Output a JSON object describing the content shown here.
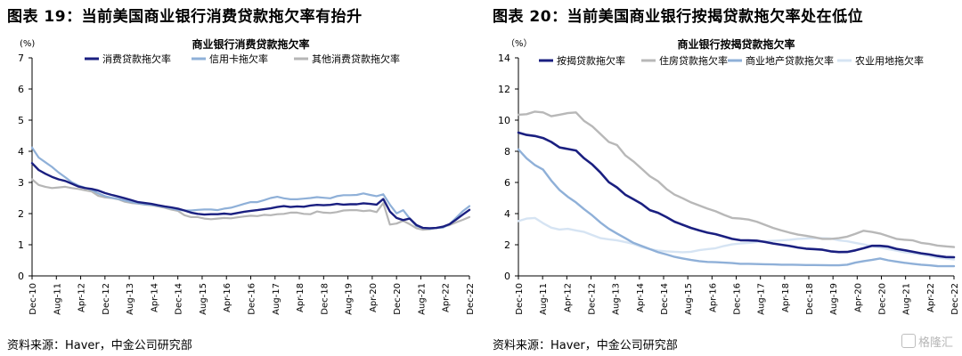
{
  "left": {
    "figure_title": "图表 19：当前美国商业银行消费贷款拖欠率有抬升",
    "source": "资料来源：Haver，中金公司研究部"
  },
  "right": {
    "figure_title": "图表 20：当前美国商业银行按揭贷款拖欠率处在低位",
    "source": "资料来源：Haver，中金公司研究部"
  },
  "watermark": {
    "text": "格隆汇"
  },
  "chart_data": [
    {
      "type": "line",
      "title": "商业银行消费贷款拖欠率",
      "ylabel": "(%)",
      "ylim": [
        0,
        7
      ],
      "yticks": [
        0,
        1,
        2,
        3,
        4,
        5,
        6,
        7
      ],
      "x_tick_labels": [
        "Dec-10",
        "Aug-11",
        "Apr-12",
        "Dec-12",
        "Aug-13",
        "Apr-14",
        "Dec-14",
        "Aug-15",
        "Apr-16",
        "Dec-16",
        "Aug-17",
        "Apr-18",
        "Dec-18",
        "Aug-19",
        "Apr-20",
        "Dec-20",
        "Aug-21",
        "Apr-22",
        "Dec-22"
      ],
      "grid": false,
      "legend_position": "top",
      "series": [
        {
          "name": "消费贷款拖欠率",
          "color": "#1a1f80",
          "width": 2.4,
          "values": [
            3.62,
            3.4,
            3.28,
            3.18,
            3.1,
            3.05,
            2.96,
            2.87,
            2.82,
            2.79,
            2.74,
            2.66,
            2.6,
            2.55,
            2.49,
            2.43,
            2.37,
            2.34,
            2.31,
            2.27,
            2.23,
            2.2,
            2.16,
            2.1,
            2.03,
            1.99,
            1.97,
            1.98,
            1.98,
            2.0,
            1.98,
            2.02,
            2.06,
            2.09,
            2.11,
            2.14,
            2.17,
            2.21,
            2.24,
            2.21,
            2.23,
            2.22,
            2.26,
            2.28,
            2.27,
            2.28,
            2.31,
            2.29,
            2.3,
            2.3,
            2.33,
            2.31,
            2.29,
            2.47,
            2.07,
            1.86,
            1.79,
            1.84,
            1.63,
            1.54,
            1.53,
            1.54,
            1.58,
            1.66,
            1.81,
            1.97,
            2.12
          ]
        },
        {
          "name": "信用卡拖欠率",
          "color": "#8fb0d8",
          "width": 2.2,
          "values": [
            4.12,
            3.8,
            3.65,
            3.5,
            3.32,
            3.17,
            3.01,
            2.9,
            2.83,
            2.76,
            2.65,
            2.56,
            2.51,
            2.47,
            2.42,
            2.37,
            2.33,
            2.3,
            2.28,
            2.25,
            2.21,
            2.17,
            2.12,
            2.1,
            2.1,
            2.12,
            2.13,
            2.13,
            2.11,
            2.16,
            2.19,
            2.25,
            2.31,
            2.37,
            2.37,
            2.43,
            2.5,
            2.54,
            2.49,
            2.46,
            2.46,
            2.48,
            2.5,
            2.53,
            2.51,
            2.49,
            2.56,
            2.59,
            2.59,
            2.6,
            2.65,
            2.6,
            2.56,
            2.62,
            2.29,
            2.01,
            2.11,
            1.84,
            1.6,
            1.54,
            1.51,
            1.54,
            1.55,
            1.66,
            1.87,
            2.08,
            2.24
          ]
        },
        {
          "name": "其他消费贷款拖欠率",
          "color": "#b6b6b6",
          "width": 2.2,
          "values": [
            3.1,
            2.92,
            2.86,
            2.82,
            2.84,
            2.86,
            2.82,
            2.79,
            2.75,
            2.71,
            2.57,
            2.52,
            2.5,
            2.46,
            2.38,
            2.34,
            2.32,
            2.29,
            2.27,
            2.23,
            2.19,
            2.13,
            2.09,
            1.95,
            1.89,
            1.89,
            1.84,
            1.82,
            1.84,
            1.86,
            1.85,
            1.88,
            1.91,
            1.93,
            1.92,
            1.96,
            1.95,
            1.98,
            1.99,
            2.03,
            2.03,
            1.99,
            1.98,
            2.07,
            2.03,
            2.02,
            2.05,
            2.1,
            2.11,
            2.11,
            2.08,
            2.1,
            2.05,
            2.34,
            1.65,
            1.68,
            1.77,
            1.66,
            1.53,
            1.48,
            1.5,
            1.54,
            1.57,
            1.63,
            1.72,
            1.8,
            1.89
          ]
        }
      ]
    },
    {
      "type": "line",
      "title": "商业银行按揭贷款拖欠率",
      "ylabel": "（%）",
      "ylim": [
        0,
        14
      ],
      "yticks": [
        0,
        2,
        4,
        6,
        8,
        10,
        12,
        14
      ],
      "x_tick_labels": [
        "Dec-10",
        "Aug-11",
        "Apr-12",
        "Dec-12",
        "Aug-13",
        "Apr-14",
        "Dec-14",
        "Aug-15",
        "Apr-16",
        "Dec-16",
        "Aug-17",
        "Apr-18",
        "Dec-18",
        "Aug-19",
        "Apr-20",
        "Dec-20",
        "Aug-21",
        "Apr-22",
        "Dec-22"
      ],
      "grid": false,
      "legend_position": "top",
      "series": [
        {
          "name": "按揭贷款拖欠率",
          "color": "#1a1f80",
          "width": 2.6,
          "values": [
            9.2,
            9.05,
            8.98,
            8.85,
            8.6,
            8.25,
            8.15,
            8.05,
            7.55,
            7.15,
            6.62,
            6.02,
            5.68,
            5.22,
            4.92,
            4.62,
            4.22,
            4.05,
            3.78,
            3.48,
            3.28,
            3.08,
            2.92,
            2.78,
            2.68,
            2.53,
            2.38,
            2.29,
            2.28,
            2.26,
            2.18,
            2.08,
            2.0,
            1.92,
            1.82,
            1.75,
            1.72,
            1.68,
            1.58,
            1.53,
            1.54,
            1.64,
            1.78,
            1.93,
            1.93,
            1.88,
            1.74,
            1.65,
            1.55,
            1.45,
            1.38,
            1.28,
            1.21,
            1.2
          ]
        },
        {
          "name": "住房贷款拖欠率",
          "color": "#b8b8b8",
          "width": 2.4,
          "values": [
            10.35,
            10.38,
            10.55,
            10.5,
            10.25,
            10.35,
            10.45,
            10.5,
            9.95,
            9.6,
            9.1,
            8.6,
            8.4,
            7.75,
            7.35,
            6.88,
            6.4,
            6.08,
            5.58,
            5.22,
            4.98,
            4.72,
            4.52,
            4.32,
            4.15,
            3.92,
            3.72,
            3.68,
            3.62,
            3.48,
            3.28,
            3.08,
            2.92,
            2.78,
            2.65,
            2.58,
            2.48,
            2.38,
            2.38,
            2.42,
            2.52,
            2.7,
            2.9,
            2.82,
            2.72,
            2.55,
            2.38,
            2.32,
            2.28,
            2.12,
            2.05,
            1.95,
            1.9,
            1.85
          ]
        },
        {
          "name": "商业地产贷款拖欠率",
          "color": "#8fb0d8",
          "width": 2.4,
          "values": [
            8.12,
            7.55,
            7.12,
            6.82,
            6.12,
            5.52,
            5.08,
            4.72,
            4.28,
            3.88,
            3.42,
            3.02,
            2.72,
            2.42,
            2.12,
            1.92,
            1.72,
            1.52,
            1.38,
            1.22,
            1.12,
            1.02,
            0.95,
            0.9,
            0.88,
            0.85,
            0.82,
            0.78,
            0.78,
            0.76,
            0.75,
            0.74,
            0.72,
            0.72,
            0.71,
            0.7,
            0.7,
            0.69,
            0.68,
            0.68,
            0.72,
            0.85,
            0.95,
            1.02,
            1.12,
            1.0,
            0.92,
            0.84,
            0.78,
            0.72,
            0.68,
            0.63,
            0.62,
            0.62
          ]
        },
        {
          "name": "农业用地拖欠率",
          "color": "#d6e4f3",
          "width": 2.4,
          "values": [
            3.52,
            3.68,
            3.72,
            3.38,
            3.1,
            2.98,
            3.02,
            2.92,
            2.82,
            2.62,
            2.42,
            2.35,
            2.28,
            2.18,
            2.05,
            1.85,
            1.72,
            1.62,
            1.58,
            1.55,
            1.52,
            1.55,
            1.65,
            1.72,
            1.78,
            1.92,
            2.02,
            2.08,
            2.12,
            2.18,
            2.22,
            2.25,
            2.28,
            2.32,
            2.38,
            2.4,
            2.42,
            2.42,
            2.4,
            2.28,
            2.22,
            2.12,
            2.02,
            1.92,
            1.82,
            1.72,
            1.62,
            1.52,
            1.45,
            1.38,
            1.28,
            1.18,
            1.12,
            1.05
          ]
        }
      ]
    }
  ]
}
